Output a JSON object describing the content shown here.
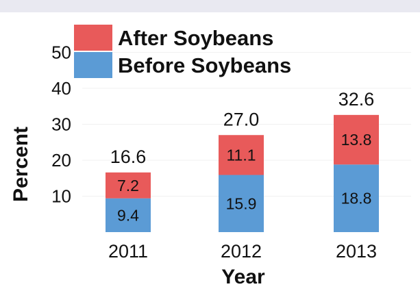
{
  "chart_data": {
    "type": "bar",
    "stacked": true,
    "categories": [
      "2011",
      "2012",
      "2013"
    ],
    "series": [
      {
        "name": "Before Soybeans",
        "color": "#5b9bd5",
        "values": [
          9.4,
          15.9,
          18.8
        ]
      },
      {
        "name": "After Soybeans",
        "color": "#e85a5a",
        "values": [
          7.2,
          11.1,
          13.8
        ]
      }
    ],
    "totals": [
      "16.6",
      "27.0",
      "32.6"
    ],
    "segment_labels": {
      "Before Soybeans": [
        "9.4",
        "15.9",
        "18.8"
      ],
      "After Soybeans": [
        "7.2",
        "11.1",
        "13.8"
      ]
    },
    "xlabel": "Year",
    "ylabel": "Percent",
    "yticks": [
      10,
      20,
      30,
      40,
      50
    ],
    "ylim": [
      0,
      50
    ],
    "legend": {
      "placement": "top-left",
      "order": [
        "After Soybeans",
        "Before Soybeans"
      ]
    },
    "grid": true
  }
}
